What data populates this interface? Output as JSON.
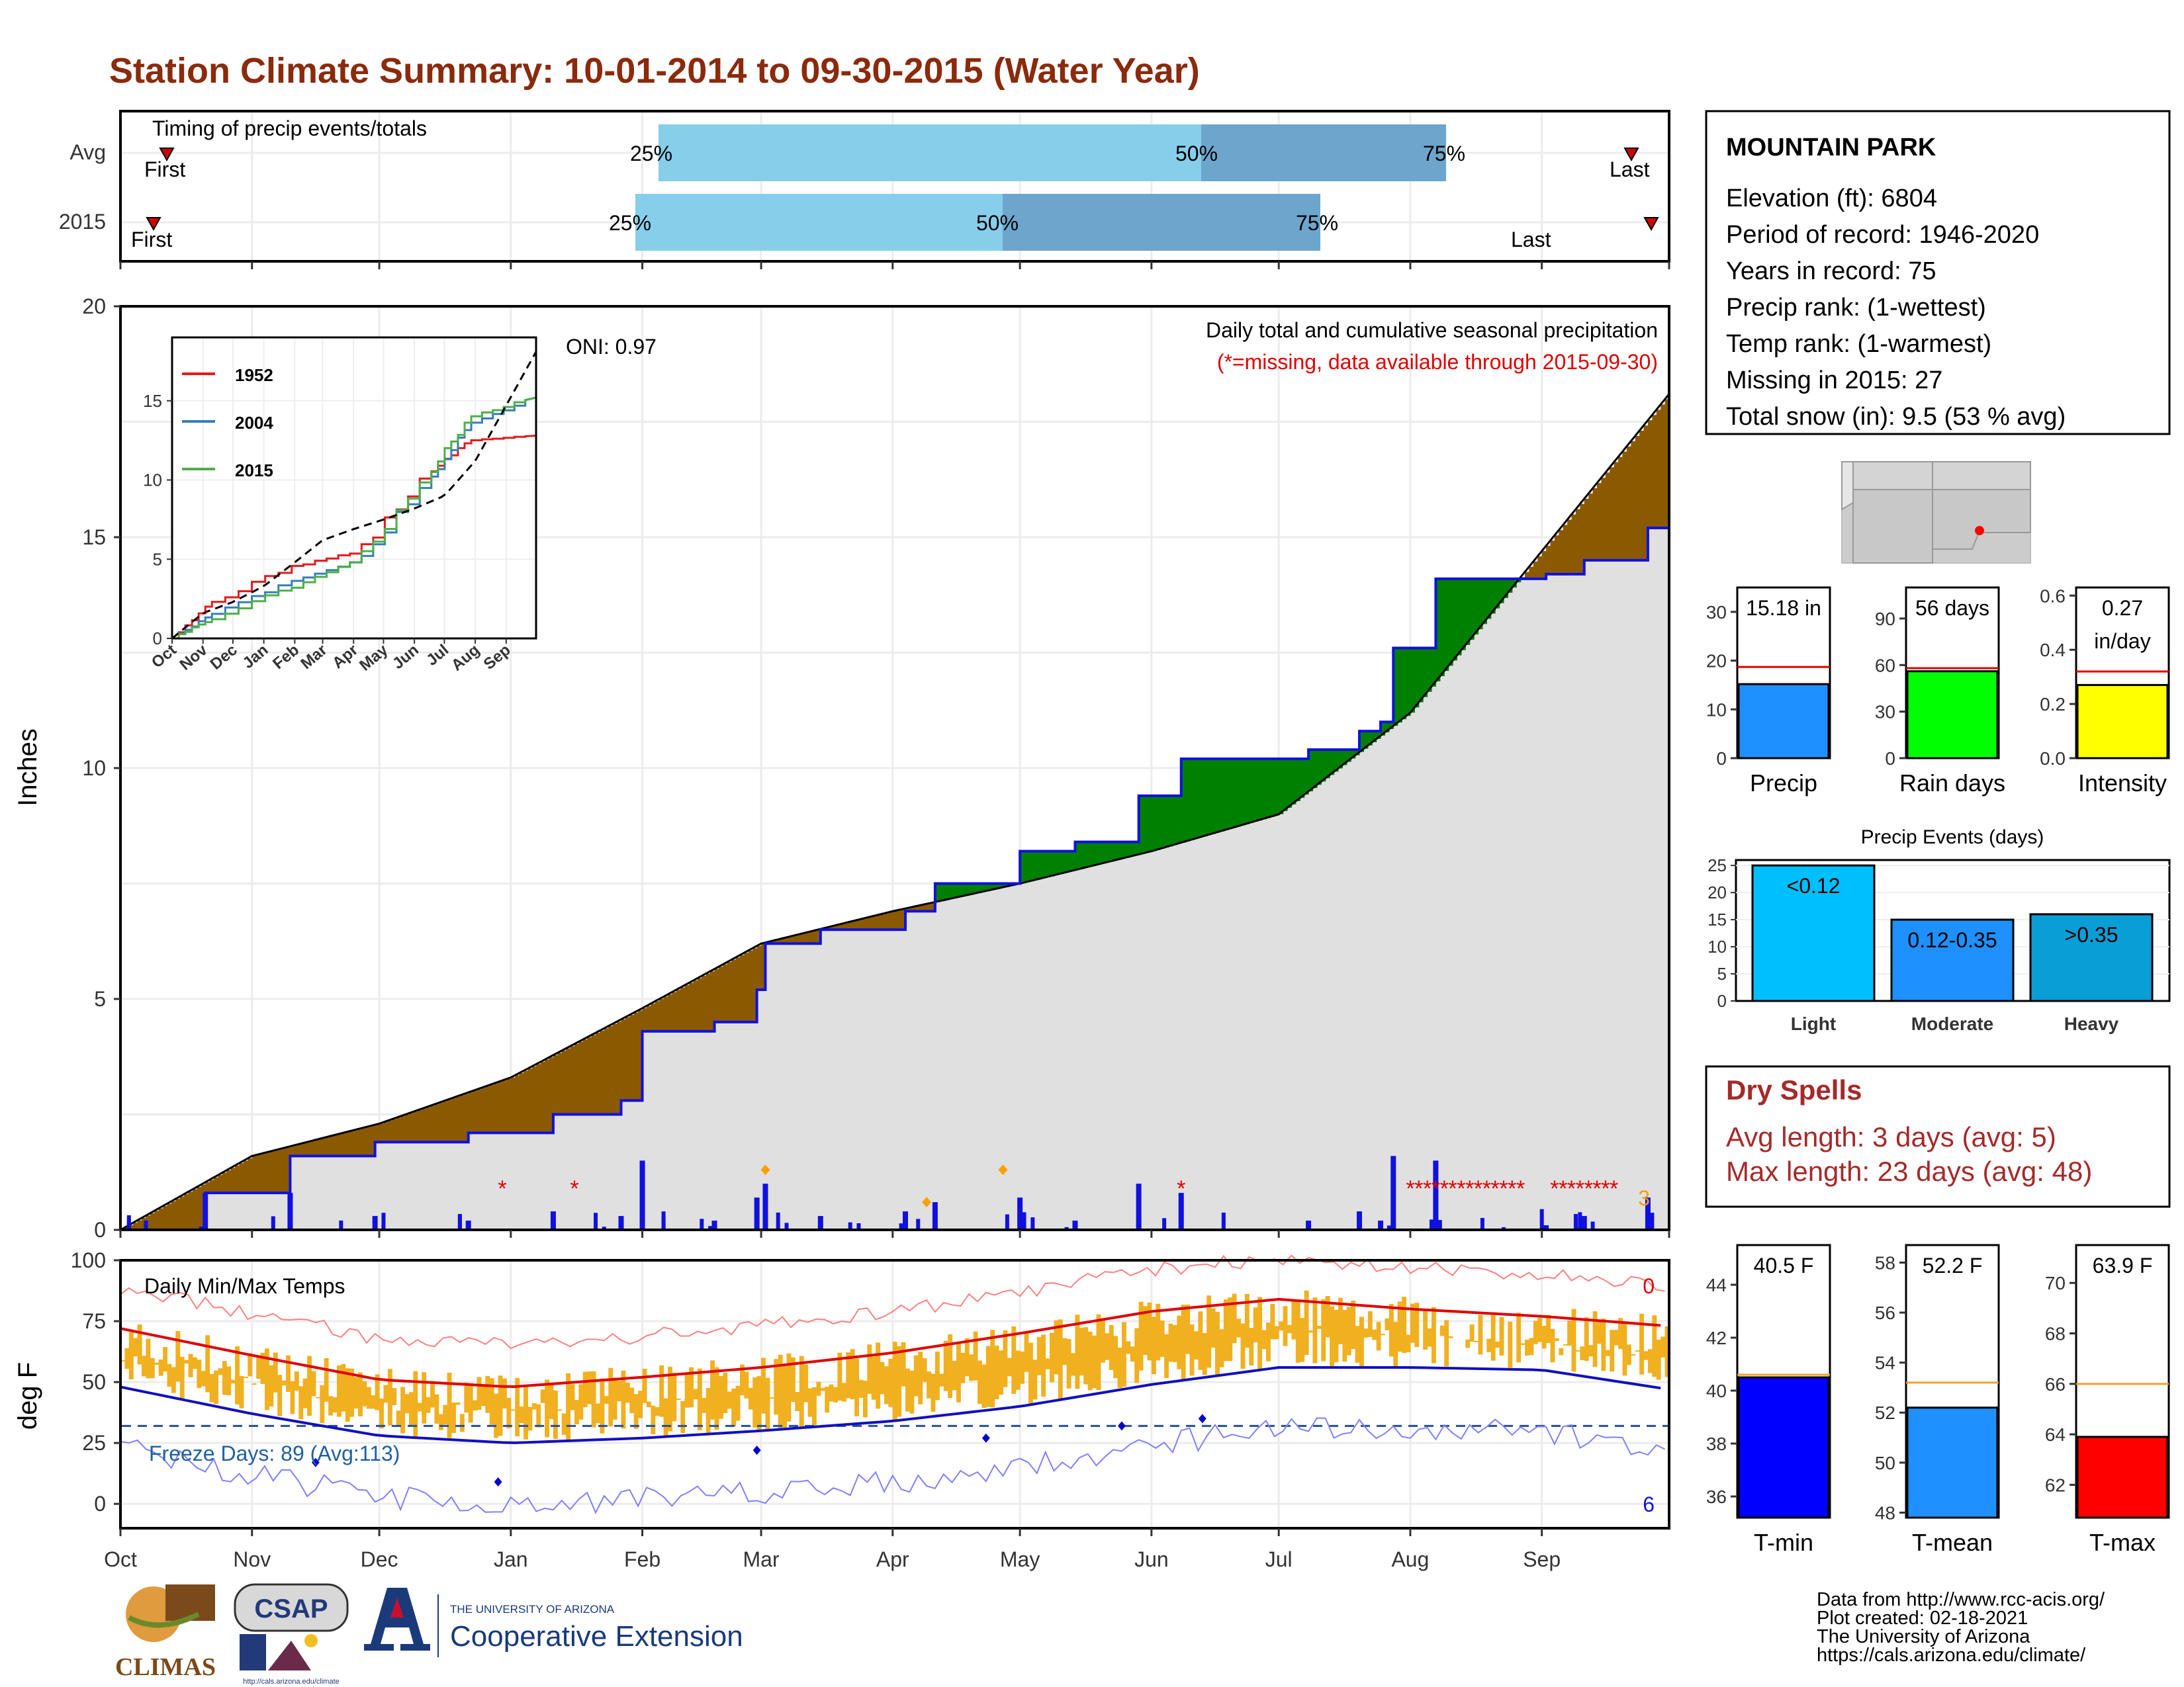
{
  "title": "Station Climate Summary: 10-01-2014 to 09-30-2015 (Water Year)",
  "colors": {
    "title": "#8b2a0c",
    "brown": "#8b5a00",
    "green": "#008000",
    "blue": "#1010e0",
    "gray": "#e0e0e0",
    "red": "#e00000",
    "orange": "#f0b020",
    "dryspell": "#a52a2a",
    "light_blue": "#87ceeb",
    "mid_blue": "#6ca6cd"
  },
  "timing": {
    "title": "Timing of precip events/totals",
    "rows": [
      {
        "label": "Avg",
        "first_label": "First",
        "last_label": "Last",
        "p25": "25%",
        "p50": "50%",
        "p75": "75%"
      },
      {
        "label": "2015",
        "first_label": "First",
        "last_label": "Last",
        "p25": "25%",
        "p50": "50%",
        "p75": "75%"
      }
    ]
  },
  "station": {
    "name": "MOUNTAIN PARK",
    "lines": [
      "Elevation (ft): 6804",
      "Period of record: 1946-2020",
      "Years in record: 75",
      "Precip rank:  (1-wettest)",
      "Temp rank:  (1-warmest)",
      "Missing in 2015: 27",
      "Total snow (in): 9.5 (53 % avg)"
    ]
  },
  "months": [
    "Oct",
    "Nov",
    "Dec",
    "Jan",
    "Feb",
    "Mar",
    "Apr",
    "May",
    "Jun",
    "Jul",
    "Aug",
    "Sep"
  ],
  "precip_panel": {
    "ylabel": "Inches",
    "legend_title": "Daily total and cumulative seasonal precipitation",
    "missing_note": "(*=missing, data available through 2015-09-30)",
    "oni": "ONI: 0.97",
    "corner_count": "3",
    "inset": {
      "series": [
        "1952",
        "2004",
        "2015"
      ],
      "months": [
        "Oct",
        "Nov",
        "Dec",
        "Jan",
        "Feb",
        "Mar",
        "Apr",
        "May",
        "Jun",
        "Jul",
        "Aug",
        "Sep"
      ],
      "yticks": [
        "0",
        "5",
        "10",
        "15"
      ]
    }
  },
  "temp_panel": {
    "ylabel": "deg F",
    "title": "Daily Min/Max Temps",
    "freeze": "Freeze Days: 89 (Avg:113)",
    "count_high": "0",
    "count_low": "6"
  },
  "bar_panels": {
    "precip": {
      "label": "Precip",
      "value_text": "15.18 in",
      "yticks": [
        "0",
        "10",
        "20",
        "30"
      ]
    },
    "raindays": {
      "label": "Rain days",
      "value_text": "56 days",
      "yticks": [
        "0",
        "30",
        "60",
        "90"
      ]
    },
    "intensity": {
      "label": "Intensity",
      "value_text": "0.27",
      "value_unit": "in/day",
      "yticks": [
        "0.0",
        "0.2",
        "0.4",
        "0.6"
      ]
    }
  },
  "events": {
    "title": "Precip Events (days)",
    "categories": [
      "Light",
      "Moderate",
      "Heavy"
    ],
    "bar_labels": [
      "<0.12",
      "0.12-0.35",
      ">0.35"
    ],
    "yticks": [
      "0",
      "5",
      "10",
      "15",
      "20",
      "25"
    ]
  },
  "dry_spells": {
    "title": "Dry Spells",
    "avg": "Avg length: 3 days (avg: 5)",
    "max": "Max length: 23 days (avg: 48)"
  },
  "temp_bars": {
    "tmin": {
      "label": "T-min",
      "value_text": "40.5 F",
      "yticks": [
        "36",
        "38",
        "40",
        "42",
        "44"
      ]
    },
    "tmean": {
      "label": "T-mean",
      "value_text": "52.2 F",
      "yticks": [
        "48",
        "50",
        "52",
        "54",
        "56",
        "58"
      ]
    },
    "tmax": {
      "label": "T-max",
      "value_text": "63.9 F",
      "yticks": [
        "62",
        "64",
        "66",
        "68",
        "70"
      ]
    }
  },
  "footer": {
    "lines": [
      "Data from http://www.rcc-acis.org/",
      "Plot created: 02-18-2021",
      "The University of Arizona",
      "https://cals.arizona.edu/climate/"
    ],
    "logos": {
      "climas": "CLIMAS",
      "csap": "CSAP",
      "csap_url": "http://cals.arizona.edu/climate",
      "ua_small": "THE UNIVERSITY OF ARIZONA",
      "ua_big": "Cooperative Extension"
    }
  },
  "chart_data": [
    {
      "type": "area",
      "title": "Daily total and cumulative seasonal precipitation",
      "ylabel": "Inches",
      "ylim": [
        0,
        20
      ],
      "x": [
        "Oct",
        "Nov",
        "Dec",
        "Jan",
        "Feb",
        "Mar",
        "Apr",
        "May",
        "Jun",
        "Jul",
        "Aug",
        "Sep",
        "end"
      ],
      "series": [
        {
          "name": "",
          "values": [
            0.0,
            1.6,
            2.3,
            3.3,
            4.8,
            6.2,
            6.9,
            7.5,
            8.2,
            9.0,
            11.2,
            14.7,
            18.1
          ]
        },
        {
          "name": "",
          "values": [
            0.0,
            1.6,
            1.9,
            2.5,
            4.3,
            6.2,
            7.5,
            8.2,
            10.2,
            10.8,
            14.1,
            14.2,
            15.2
          ]
        }
      ]
    },
    {
      "type": "line",
      "xlim": [
        0,
        365
      ],
      "ylim": [
        0,
        19
      ],
      "series": [
        {
          "name": "1952",
          "values": [
            0.0,
            2.2,
            4.5,
            5.5,
            10.5,
            12.5,
            12.8
          ]
        },
        {
          "name": "2004",
          "values": [
            0.0,
            1.5,
            3.5,
            5.0,
            10.0,
            13.5,
            15.2
          ]
        },
        {
          "name": "2015",
          "values": [
            0.0,
            1.2,
            3.2,
            5.0,
            10.5,
            14.0,
            15.2
          ]
        }
      ]
    },
    {
      "type": "line",
      "title": "Daily Min/Max Temps",
      "ylabel": "deg F",
      "ylim": [
        -10,
        100
      ],
      "x": [
        "Oct",
        "Nov",
        "Dec",
        "Jan",
        "Feb",
        "Mar",
        "Apr",
        "May",
        "Jun",
        "Jul",
        "Aug",
        "Sep",
        "end"
      ],
      "series": [
        {
          "name": "",
          "values": [
            72,
            61,
            51,
            48,
            52,
            56,
            62,
            70,
            79,
            84,
            80,
            77,
            73
          ]
        },
        {
          "name": "",
          "values": [
            48,
            37,
            28,
            25,
            27,
            30,
            34,
            40,
            49,
            56,
            56,
            55,
            47
          ]
        }
      ]
    },
    {
      "type": "bar",
      "categories": [
        "Precip"
      ],
      "values": [
        15.18
      ],
      "ylim": [
        0,
        35
      ]
    },
    {
      "type": "bar",
      "categories": [
        "Rain days"
      ],
      "values": [
        56
      ],
      "ylim": [
        0,
        110
      ]
    },
    {
      "type": "bar",
      "categories": [
        "Intensity"
      ],
      "values": [
        0.27
      ],
      "ylim": [
        0,
        0.63
      ]
    },
    {
      "type": "bar",
      "title": "Precip Events (days)",
      "categories": [
        "Light",
        "Moderate",
        "Heavy"
      ],
      "values": [
        25,
        15,
        16
      ],
      "ylim": [
        0,
        26
      ]
    },
    {
      "type": "bar",
      "categories": [
        "T-min"
      ],
      "values": [
        40.5
      ],
      "ylim": [
        35.2,
        45.5
      ]
    },
    {
      "type": "bar",
      "categories": [
        "T-mean"
      ],
      "values": [
        52.2
      ],
      "ylim": [
        47.8,
        58.7
      ]
    },
    {
      "type": "bar",
      "categories": [
        "T-max"
      ],
      "values": [
        63.9
      ],
      "ylim": [
        60.7,
        71.5
      ]
    }
  ]
}
